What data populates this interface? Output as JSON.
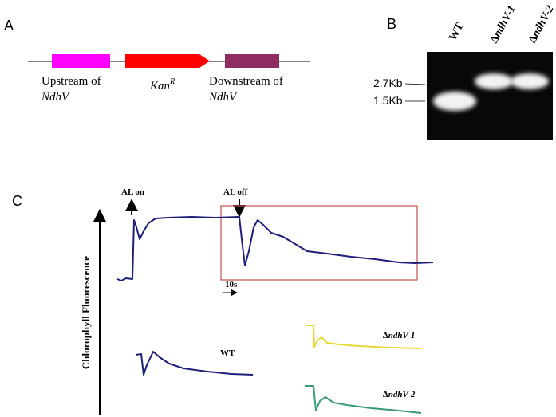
{
  "panel_a": {
    "letter": "A",
    "upstream_label": "Upstream of",
    "upstream_gene": "NdhV",
    "marker_label": "Kan",
    "marker_superscript": "R",
    "downstream_label": "Downstream of",
    "downstream_gene": "NdhV"
  },
  "panel_b": {
    "letter": "B",
    "lanes": [
      "WT",
      "∆ndhV-1",
      "∆ndhV-2"
    ],
    "size_markers": [
      "2.7Kb",
      "1.5Kb"
    ]
  },
  "panel_c": {
    "letter": "C",
    "y_axis_label": "Chlorophyll  Fluorescence",
    "light_on": "AL on",
    "light_off": "AL off",
    "time_scale": "10s",
    "traces": [
      "WT",
      "∆ndhV-1",
      "∆ndhV-2"
    ]
  }
}
